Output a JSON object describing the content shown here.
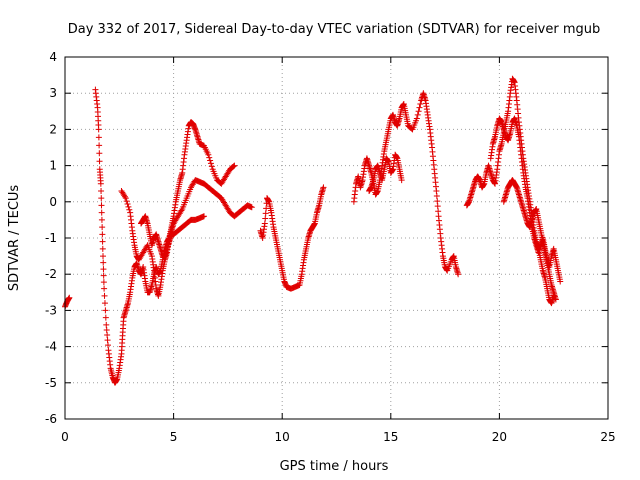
{
  "chart_data": {
    "type": "scatter",
    "title": "Day 332 of 2017, Sidereal Day-to-day VTEC variation (SDTVAR) for receiver mgub",
    "xlabel": "GPS time / hours",
    "ylabel": "SDTVAR / TECUs",
    "xlim": [
      0,
      25
    ],
    "ylim": [
      -6,
      4
    ],
    "xticks": [
      0,
      5,
      10,
      15,
      20,
      25
    ],
    "yticks": [
      -6,
      -5,
      -4,
      -3,
      -2,
      -1,
      0,
      1,
      2,
      3,
      4
    ],
    "grid": true,
    "marker": "plus",
    "color": "#e00000",
    "series": [
      {
        "name": "seg1",
        "points": [
          [
            0.0,
            -2.9
          ],
          [
            0.1,
            -2.75
          ],
          [
            0.2,
            -2.65
          ]
        ]
      },
      {
        "name": "seg2",
        "points": [
          [
            1.4,
            3.1
          ],
          [
            1.5,
            2.6
          ],
          [
            1.55,
            2.0
          ],
          [
            1.6,
            0.9
          ],
          [
            1.65,
            0.5
          ],
          [
            1.7,
            -0.5
          ],
          [
            1.75,
            -1.5
          ],
          [
            1.8,
            -2.4
          ],
          [
            1.9,
            -3.4
          ],
          [
            2.0,
            -4.1
          ],
          [
            2.1,
            -4.6
          ],
          [
            2.2,
            -4.85
          ],
          [
            2.3,
            -5.0
          ],
          [
            2.4,
            -4.9
          ],
          [
            2.5,
            -4.6
          ],
          [
            2.6,
            -4.2
          ],
          [
            2.65,
            -3.7
          ],
          [
            2.7,
            -3.2
          ],
          [
            2.8,
            -3.0
          ],
          [
            2.9,
            -2.8
          ],
          [
            3.0,
            -2.5
          ],
          [
            3.1,
            -2.1
          ],
          [
            3.2,
            -1.8
          ],
          [
            3.3,
            -1.7
          ],
          [
            3.4,
            -1.9
          ],
          [
            3.5,
            -2.0
          ],
          [
            3.6,
            -1.8
          ],
          [
            3.7,
            -2.2
          ],
          [
            3.8,
            -2.5
          ],
          [
            3.9,
            -2.5
          ],
          [
            4.0,
            -2.3
          ],
          [
            4.1,
            -2.0
          ],
          [
            4.2,
            -1.8
          ],
          [
            4.3,
            -2.0
          ],
          [
            4.4,
            -1.9
          ],
          [
            4.5,
            -1.6
          ],
          [
            4.6,
            -1.3
          ],
          [
            4.7,
            -1.1
          ],
          [
            4.8,
            -1.0
          ],
          [
            4.9,
            -0.8
          ],
          [
            5.0,
            -0.6
          ],
          [
            5.2,
            -0.4
          ],
          [
            5.4,
            -0.2
          ],
          [
            5.6,
            0.1
          ],
          [
            5.8,
            0.4
          ],
          [
            6.0,
            0.6
          ],
          [
            6.2,
            0.55
          ],
          [
            6.4,
            0.5
          ],
          [
            6.6,
            0.4
          ],
          [
            6.8,
            0.3
          ],
          [
            7.0,
            0.2
          ],
          [
            7.2,
            0.1
          ],
          [
            7.4,
            -0.1
          ],
          [
            7.6,
            -0.3
          ],
          [
            7.8,
            -0.4
          ],
          [
            8.0,
            -0.3
          ],
          [
            8.2,
            -0.2
          ],
          [
            8.4,
            -0.1
          ],
          [
            8.6,
            -0.15
          ]
        ]
      },
      {
        "name": "seg3",
        "points": [
          [
            2.6,
            0.3
          ],
          [
            2.8,
            0.1
          ],
          [
            3.0,
            -0.3
          ],
          [
            3.1,
            -0.8
          ],
          [
            3.2,
            -1.2
          ],
          [
            3.3,
            -1.5
          ],
          [
            3.4,
            -1.6
          ],
          [
            3.6,
            -1.4
          ],
          [
            3.8,
            -1.2
          ],
          [
            4.0,
            -1.5
          ],
          [
            4.1,
            -1.9
          ],
          [
            4.2,
            -2.4
          ],
          [
            4.3,
            -2.6
          ],
          [
            4.4,
            -2.3
          ],
          [
            4.5,
            -1.9
          ],
          [
            4.6,
            -1.6
          ],
          [
            4.7,
            -1.4
          ],
          [
            4.8,
            -1.0
          ],
          [
            4.9,
            -0.7
          ],
          [
            5.0,
            -0.4
          ],
          [
            5.1,
            0.0
          ],
          [
            5.2,
            0.3
          ],
          [
            5.3,
            0.6
          ],
          [
            5.4,
            0.8
          ],
          [
            5.5,
            1.3
          ],
          [
            5.6,
            1.7
          ],
          [
            5.7,
            2.1
          ],
          [
            5.8,
            2.2
          ],
          [
            5.9,
            2.15
          ],
          [
            6.0,
            2.0
          ],
          [
            6.1,
            1.8
          ],
          [
            6.2,
            1.6
          ],
          [
            6.4,
            1.55
          ],
          [
            6.6,
            1.3
          ],
          [
            6.8,
            0.9
          ],
          [
            7.0,
            0.6
          ],
          [
            7.2,
            0.5
          ],
          [
            7.4,
            0.7
          ],
          [
            7.6,
            0.9
          ],
          [
            7.8,
            1.0
          ]
        ]
      },
      {
        "name": "seg4",
        "points": [
          [
            3.5,
            -0.6
          ],
          [
            3.6,
            -0.5
          ],
          [
            3.7,
            -0.4
          ],
          [
            3.8,
            -0.6
          ],
          [
            3.9,
            -0.9
          ],
          [
            4.0,
            -1.2
          ],
          [
            4.1,
            -1.0
          ],
          [
            4.2,
            -0.9
          ],
          [
            4.3,
            -1.1
          ],
          [
            4.4,
            -1.3
          ],
          [
            4.5,
            -1.5
          ],
          [
            4.6,
            -1.5
          ],
          [
            4.7,
            -1.3
          ],
          [
            4.8,
            -1.1
          ],
          [
            4.9,
            -0.9
          ],
          [
            5.0,
            -0.9
          ],
          [
            5.2,
            -0.8
          ],
          [
            5.4,
            -0.7
          ],
          [
            5.6,
            -0.6
          ],
          [
            5.8,
            -0.5
          ],
          [
            6.0,
            -0.5
          ],
          [
            6.2,
            -0.45
          ],
          [
            6.4,
            -0.4
          ]
        ]
      },
      {
        "name": "seg5",
        "points": [
          [
            9.0,
            -0.8
          ],
          [
            9.1,
            -1.0
          ],
          [
            9.2,
            -0.6
          ],
          [
            9.3,
            0.1
          ],
          [
            9.4,
            0.0
          ],
          [
            9.5,
            -0.3
          ],
          [
            9.6,
            -0.7
          ],
          [
            9.7,
            -1.0
          ],
          [
            9.8,
            -1.3
          ],
          [
            9.9,
            -1.6
          ],
          [
            10.0,
            -1.9
          ],
          [
            10.1,
            -2.2
          ],
          [
            10.2,
            -2.35
          ],
          [
            10.4,
            -2.4
          ],
          [
            10.6,
            -2.35
          ],
          [
            10.8,
            -2.3
          ],
          [
            10.9,
            -2.0
          ],
          [
            11.0,
            -1.6
          ],
          [
            11.1,
            -1.3
          ],
          [
            11.2,
            -1.0
          ],
          [
            11.3,
            -0.8
          ],
          [
            11.4,
            -0.7
          ],
          [
            11.5,
            -0.6
          ],
          [
            11.6,
            -0.3
          ],
          [
            11.7,
            -0.1
          ],
          [
            11.8,
            0.2
          ],
          [
            11.9,
            0.4
          ]
        ]
      },
      {
        "name": "seg6",
        "points": [
          [
            13.3,
            0.0
          ],
          [
            13.4,
            0.5
          ],
          [
            13.5,
            0.7
          ],
          [
            13.6,
            0.4
          ],
          [
            13.7,
            0.6
          ],
          [
            13.8,
            1.0
          ],
          [
            13.9,
            1.2
          ],
          [
            14.0,
            1.0
          ],
          [
            14.1,
            0.8
          ],
          [
            14.2,
            0.5
          ],
          [
            14.3,
            0.2
          ],
          [
            14.4,
            0.3
          ],
          [
            14.5,
            0.6
          ],
          [
            14.6,
            1.0
          ],
          [
            14.7,
            1.4
          ],
          [
            14.8,
            1.7
          ],
          [
            14.9,
            2.0
          ],
          [
            15.0,
            2.3
          ],
          [
            15.1,
            2.4
          ],
          [
            15.2,
            2.2
          ],
          [
            15.3,
            2.1
          ],
          [
            15.4,
            2.3
          ],
          [
            15.5,
            2.6
          ],
          [
            15.6,
            2.7
          ],
          [
            15.7,
            2.4
          ],
          [
            15.8,
            2.1
          ],
          [
            16.0,
            2.0
          ],
          [
            16.2,
            2.3
          ],
          [
            16.4,
            2.8
          ],
          [
            16.5,
            3.0
          ],
          [
            16.6,
            2.8
          ],
          [
            16.7,
            2.4
          ],
          [
            16.8,
            2.0
          ],
          [
            16.9,
            1.5
          ],
          [
            17.0,
            0.9
          ],
          [
            17.1,
            0.3
          ],
          [
            17.2,
            -0.4
          ],
          [
            17.3,
            -1.0
          ],
          [
            17.4,
            -1.5
          ],
          [
            17.5,
            -1.8
          ],
          [
            17.6,
            -1.9
          ],
          [
            17.8,
            -1.6
          ],
          [
            17.9,
            -1.5
          ],
          [
            18.0,
            -1.8
          ],
          [
            18.1,
            -2.0
          ]
        ]
      },
      {
        "name": "seg7",
        "points": [
          [
            14.0,
            0.3
          ],
          [
            14.1,
            0.4
          ],
          [
            14.2,
            0.6
          ],
          [
            14.3,
            0.9
          ],
          [
            14.4,
            1.0
          ],
          [
            14.5,
            0.8
          ],
          [
            14.6,
            0.6
          ],
          [
            14.7,
            0.9
          ],
          [
            14.8,
            1.2
          ],
          [
            14.9,
            1.1
          ],
          [
            15.0,
            0.8
          ],
          [
            15.1,
            0.9
          ],
          [
            15.2,
            1.3
          ],
          [
            15.3,
            1.2
          ],
          [
            15.4,
            0.9
          ],
          [
            15.5,
            0.6
          ]
        ]
      },
      {
        "name": "seg8",
        "points": [
          [
            18.5,
            -0.1
          ],
          [
            18.6,
            0.0
          ],
          [
            18.7,
            0.2
          ],
          [
            18.8,
            0.4
          ],
          [
            18.9,
            0.6
          ],
          [
            19.0,
            0.7
          ],
          [
            19.1,
            0.6
          ],
          [
            19.2,
            0.4
          ],
          [
            19.3,
            0.5
          ],
          [
            19.4,
            0.8
          ],
          [
            19.5,
            1.0
          ],
          [
            19.6,
            0.8
          ],
          [
            19.7,
            0.6
          ],
          [
            19.8,
            0.5
          ],
          [
            19.9,
            0.9
          ],
          [
            20.0,
            1.4
          ],
          [
            20.1,
            1.6
          ],
          [
            20.2,
            1.9
          ],
          [
            20.3,
            2.2
          ],
          [
            20.4,
            2.5
          ],
          [
            20.5,
            3.0
          ],
          [
            20.6,
            3.4
          ],
          [
            20.7,
            3.3
          ],
          [
            20.8,
            2.8
          ],
          [
            20.9,
            2.2
          ],
          [
            21.0,
            1.7
          ],
          [
            21.1,
            1.2
          ],
          [
            21.2,
            0.8
          ],
          [
            21.3,
            0.4
          ],
          [
            21.4,
            0.0
          ],
          [
            21.5,
            -0.4
          ],
          [
            21.6,
            -0.8
          ],
          [
            21.7,
            -1.1
          ],
          [
            21.8,
            -1.3
          ],
          [
            21.9,
            -1.6
          ],
          [
            22.0,
            -1.9
          ],
          [
            22.1,
            -2.1
          ],
          [
            22.2,
            -2.4
          ],
          [
            22.3,
            -2.7
          ],
          [
            22.4,
            -2.8
          ],
          [
            22.5,
            -2.6
          ]
        ]
      },
      {
        "name": "seg9",
        "points": [
          [
            19.6,
            1.2
          ],
          [
            19.7,
            1.6
          ],
          [
            19.8,
            1.8
          ],
          [
            19.9,
            2.1
          ],
          [
            20.0,
            2.3
          ],
          [
            20.1,
            2.2
          ],
          [
            20.2,
            2.0
          ],
          [
            20.3,
            1.8
          ],
          [
            20.4,
            1.7
          ],
          [
            20.5,
            1.9
          ],
          [
            20.6,
            2.2
          ],
          [
            20.7,
            2.3
          ],
          [
            20.8,
            2.1
          ],
          [
            20.9,
            1.8
          ],
          [
            21.0,
            1.3
          ],
          [
            21.1,
            0.8
          ],
          [
            21.2,
            0.4
          ],
          [
            21.3,
            0.1
          ],
          [
            21.4,
            -0.3
          ],
          [
            21.5,
            -0.7
          ],
          [
            21.6,
            -1.0
          ],
          [
            21.7,
            -1.2
          ],
          [
            21.8,
            -1.4
          ],
          [
            21.9,
            -1.2
          ],
          [
            22.0,
            -1.0
          ],
          [
            22.1,
            -1.3
          ],
          [
            22.2,
            -1.6
          ],
          [
            22.3,
            -1.8
          ],
          [
            22.4,
            -1.5
          ],
          [
            22.5,
            -1.3
          ],
          [
            22.6,
            -1.6
          ],
          [
            22.7,
            -1.9
          ],
          [
            22.8,
            -2.2
          ]
        ]
      },
      {
        "name": "seg10",
        "points": [
          [
            20.2,
            0.0
          ],
          [
            20.3,
            0.2
          ],
          [
            20.4,
            0.4
          ],
          [
            20.5,
            0.5
          ],
          [
            20.6,
            0.6
          ],
          [
            20.7,
            0.5
          ],
          [
            20.8,
            0.4
          ],
          [
            20.9,
            0.2
          ],
          [
            21.0,
            0.0
          ],
          [
            21.1,
            -0.2
          ],
          [
            21.2,
            -0.4
          ],
          [
            21.3,
            -0.6
          ],
          [
            21.4,
            -0.7
          ],
          [
            21.5,
            -0.5
          ],
          [
            21.6,
            -0.3
          ],
          [
            21.7,
            -0.2
          ],
          [
            21.8,
            -0.5
          ],
          [
            21.9,
            -0.8
          ],
          [
            22.0,
            -1.1
          ],
          [
            22.1,
            -1.4
          ],
          [
            22.2,
            -1.7
          ],
          [
            22.3,
            -2.0
          ],
          [
            22.4,
            -2.3
          ],
          [
            22.5,
            -2.5
          ],
          [
            22.6,
            -2.7
          ]
        ]
      }
    ]
  }
}
